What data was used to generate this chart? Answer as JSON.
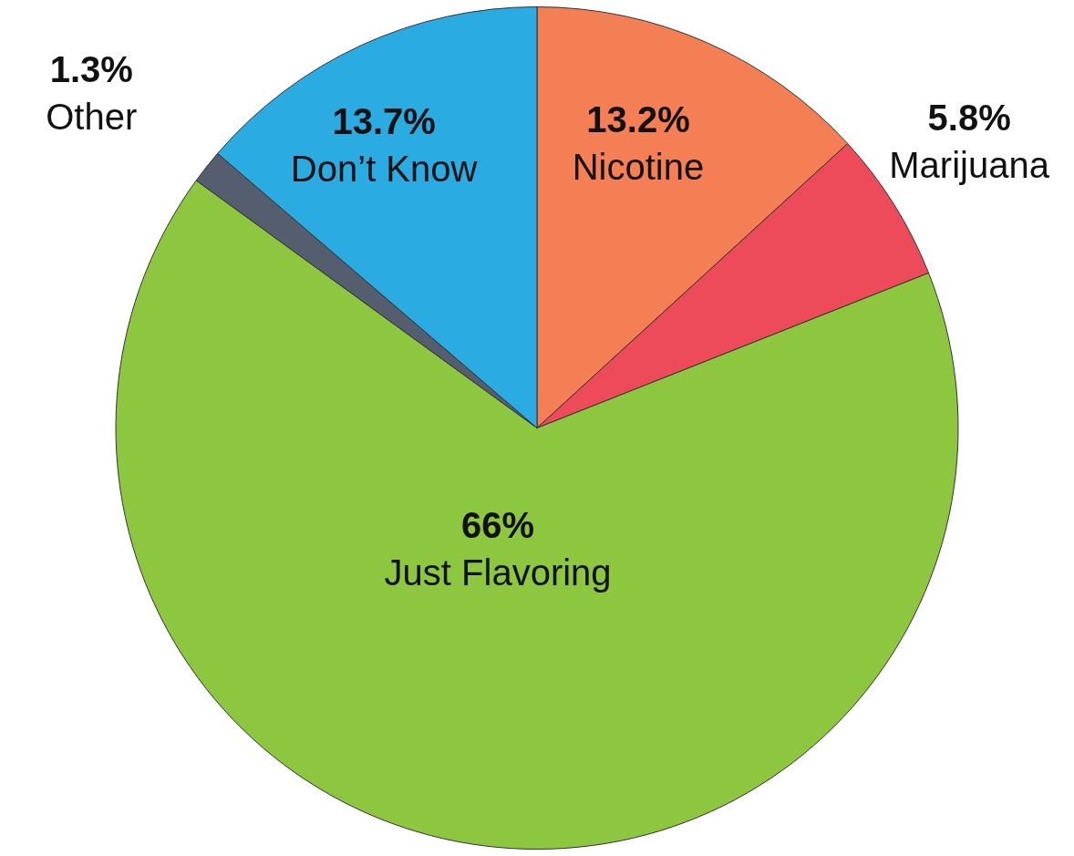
{
  "chart_data": {
    "type": "pie",
    "categories": [
      "Nicotine",
      "Marijuana",
      "Just Flavoring",
      "Other",
      "Don’t Know"
    ],
    "values": [
      13.2,
      5.8,
      66,
      1.3,
      13.7
    ],
    "value_labels": [
      "13.2%",
      "5.8%",
      "66%",
      "1.3%",
      "13.7%"
    ],
    "colors": [
      "#f47f54",
      "#ee4b5a",
      "#8dc63f",
      "#545e6e",
      "#2aace2"
    ]
  }
}
